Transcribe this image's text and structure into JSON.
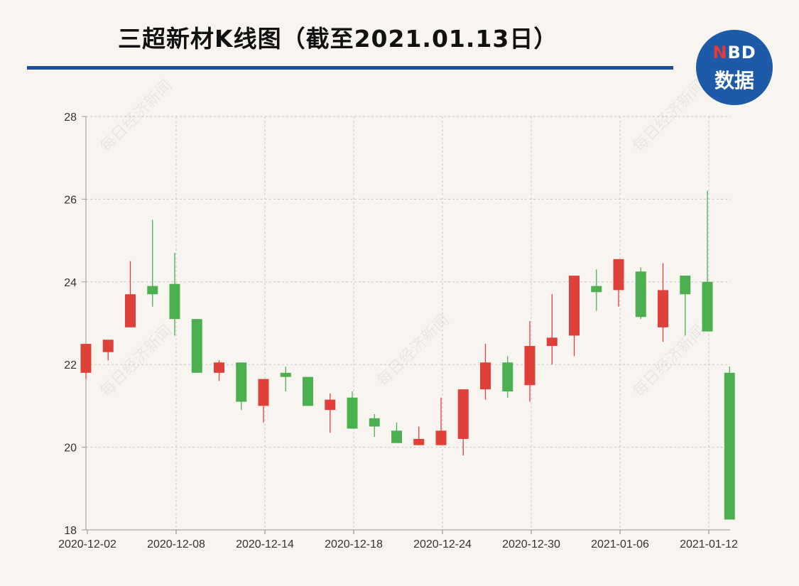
{
  "title": "三超新材K线图（截至2021.01.13日）",
  "logo": {
    "top_n": "N",
    "top_rest": "BD",
    "bottom": "数据"
  },
  "watermark": "每日经济新闻",
  "colors": {
    "up": "#e0403a",
    "down": "#4caf50",
    "title_rule": "#1f4f9a",
    "logo_bg": "#1d5aa8"
  },
  "chart_data": {
    "type": "candlestick",
    "ylim": [
      18,
      28
    ],
    "yticks": [
      18,
      20,
      22,
      24,
      26,
      28
    ],
    "xtick_labels": [
      "2020-12-02",
      "2020-12-08",
      "2020-12-14",
      "2020-12-18",
      "2020-12-24",
      "2020-12-30",
      "2021-01-06",
      "2021-01-12"
    ],
    "xtick_indices": [
      0,
      4,
      8,
      12,
      16,
      20,
      24,
      28
    ],
    "candles": [
      {
        "date": "2020-12-02",
        "open": 21.8,
        "close": 22.5,
        "high": 22.5,
        "low": 21.65
      },
      {
        "date": "2020-12-03",
        "open": 22.3,
        "close": 22.6,
        "high": 22.6,
        "low": 22.1
      },
      {
        "date": "2020-12-04",
        "open": 22.9,
        "close": 23.7,
        "high": 24.5,
        "low": 22.9
      },
      {
        "date": "2020-12-07",
        "open": 23.9,
        "close": 23.7,
        "high": 25.5,
        "low": 23.4
      },
      {
        "date": "2020-12-08",
        "open": 23.95,
        "close": 23.1,
        "high": 24.7,
        "low": 22.7
      },
      {
        "date": "2020-12-09",
        "open": 23.1,
        "close": 21.8,
        "high": 23.1,
        "low": 21.8
      },
      {
        "date": "2020-12-10",
        "open": 21.8,
        "close": 22.05,
        "high": 22.1,
        "low": 21.6
      },
      {
        "date": "2020-12-11",
        "open": 22.05,
        "close": 21.1,
        "high": 22.05,
        "low": 20.9
      },
      {
        "date": "2020-12-14",
        "open": 21.0,
        "close": 21.65,
        "high": 21.65,
        "low": 20.6
      },
      {
        "date": "2020-12-15",
        "open": 21.8,
        "close": 21.7,
        "high": 21.95,
        "low": 21.35
      },
      {
        "date": "2020-12-16",
        "open": 21.7,
        "close": 21.0,
        "high": 21.7,
        "low": 21.0
      },
      {
        "date": "2020-12-17",
        "open": 20.9,
        "close": 21.15,
        "high": 21.3,
        "low": 20.35
      },
      {
        "date": "2020-12-18",
        "open": 21.2,
        "close": 20.45,
        "high": 21.35,
        "low": 20.45
      },
      {
        "date": "2020-12-21",
        "open": 20.7,
        "close": 20.5,
        "high": 20.8,
        "low": 20.25
      },
      {
        "date": "2020-12-22",
        "open": 20.4,
        "close": 20.1,
        "high": 20.6,
        "low": 20.1
      },
      {
        "date": "2020-12-23",
        "open": 20.05,
        "close": 20.2,
        "high": 20.5,
        "low": 20.05
      },
      {
        "date": "2020-12-24",
        "open": 20.05,
        "close": 20.4,
        "high": 21.2,
        "low": 20.05
      },
      {
        "date": "2020-12-25",
        "open": 20.2,
        "close": 21.4,
        "high": 21.4,
        "low": 19.8
      },
      {
        "date": "2020-12-28",
        "open": 21.4,
        "close": 22.05,
        "high": 22.5,
        "low": 21.15
      },
      {
        "date": "2020-12-29",
        "open": 22.05,
        "close": 21.35,
        "high": 22.2,
        "low": 21.2
      },
      {
        "date": "2020-12-30",
        "open": 21.5,
        "close": 22.45,
        "high": 23.05,
        "low": 21.1
      },
      {
        "date": "2020-12-31",
        "open": 22.45,
        "close": 22.65,
        "high": 23.7,
        "low": 22.0
      },
      {
        "date": "2021-01-04",
        "open": 22.7,
        "close": 24.15,
        "high": 24.15,
        "low": 22.2
      },
      {
        "date": "2021-01-05",
        "open": 23.9,
        "close": 23.75,
        "high": 24.3,
        "low": 23.3
      },
      {
        "date": "2021-01-06",
        "open": 23.8,
        "close": 24.55,
        "high": 24.55,
        "low": 23.4
      },
      {
        "date": "2021-01-07",
        "open": 24.25,
        "close": 23.15,
        "high": 24.35,
        "low": 23.1
      },
      {
        "date": "2021-01-08",
        "open": 22.9,
        "close": 23.8,
        "high": 24.45,
        "low": 22.55
      },
      {
        "date": "2021-01-11",
        "open": 24.15,
        "close": 23.7,
        "high": 24.15,
        "low": 22.7
      },
      {
        "date": "2021-01-12",
        "open": 24.0,
        "close": 22.8,
        "high": 26.2,
        "low": 22.8
      },
      {
        "date": "2021-01-13",
        "open": 21.8,
        "close": 18.25,
        "high": 21.95,
        "low": 18.25
      }
    ]
  }
}
